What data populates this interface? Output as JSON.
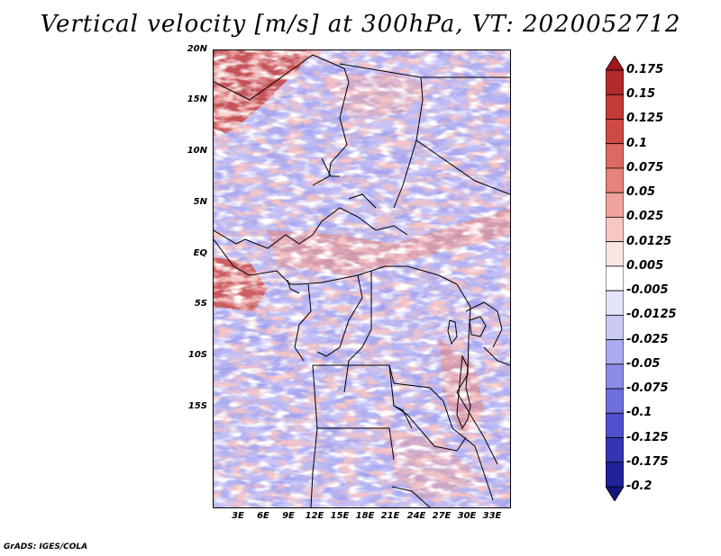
{
  "title": "Vertical velocity [m/s] at 300hPa, VT: 2020052712",
  "footer": "GrADS: IGES/COLA",
  "map": {
    "variable": "Vertical velocity",
    "units": "m/s",
    "level": "300hPa",
    "valid_time": "2020052712",
    "lat_labels": [
      "20N",
      "15N",
      "10N",
      "5N",
      "EQ",
      "5S",
      "10S",
      "15S"
    ],
    "lon_labels": [
      "3E",
      "6E",
      "9E",
      "12E",
      "15E",
      "18E",
      "21E",
      "24E",
      "27E",
      "30E",
      "33E"
    ]
  },
  "colorbar": {
    "levels": [
      "0.175",
      "0.15",
      "0.125",
      "0.1",
      "0.075",
      "0.05",
      "0.025",
      "0.0125",
      "0.005",
      "-0.005",
      "-0.0125",
      "-0.025",
      "-0.05",
      "-0.075",
      "-0.1",
      "-0.125",
      "-0.175",
      "-0.2"
    ],
    "colors": [
      "#a3161c",
      "#b52a2a",
      "#c43a36",
      "#d04a44",
      "#dd6a62",
      "#e6837a",
      "#f0a39c",
      "#f7c7c2",
      "#fbe5e2",
      "#ffffff",
      "#e4e4fa",
      "#c9c9f3",
      "#aaaaf0",
      "#8c8ce6",
      "#7070dc",
      "#5050cc",
      "#3434b4",
      "#22229c",
      "#14147a"
    ]
  }
}
